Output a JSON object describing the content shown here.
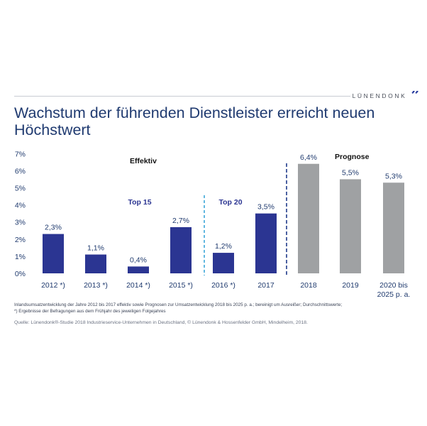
{
  "header": {
    "brand": "LÜNENDONK",
    "title_line1": "Wachstum der führenden Dienstleister erreicht neuen",
    "title_line2": "Höchstwert"
  },
  "chart_data": {
    "type": "bar",
    "categories": [
      "2012 *)",
      "2013 *)",
      "2014 *)",
      "2015 *)",
      "2016 *)",
      "2017",
      "2018",
      "2019",
      "2020 bis 2025 p. a."
    ],
    "values": [
      2.3,
      1.1,
      0.4,
      2.7,
      1.2,
      3.5,
      6.4,
      5.5,
      5.3
    ],
    "value_labels": [
      "2,3%",
      "1,1%",
      "0,4%",
      "2,7%",
      "1,2%",
      "3,5%",
      "6,4%",
      "5,5%",
      "5,3%"
    ],
    "bar_groups": [
      "effektiv",
      "effektiv",
      "effektiv",
      "effektiv",
      "effektiv",
      "effektiv",
      "prognose",
      "prognose",
      "prognose"
    ],
    "ylim": [
      0,
      7
    ],
    "yticks": [
      "0%",
      "1%",
      "2%",
      "3%",
      "4%",
      "5%",
      "6%",
      "7%"
    ],
    "annotations": {
      "effektiv": "Effektiv",
      "prognose": "Prognose",
      "top15": "Top 15",
      "top20": "Top 20"
    },
    "colors": {
      "effektiv": "#2b3592",
      "prognose": "#9fa1a3",
      "divider_top": "#3ba7d9",
      "divider_forecast": "#1f3a8a",
      "axis_text": "#1f3a6e"
    }
  },
  "footnotes": {
    "line1": "Inlandsumsatzentwicklung der Jahre 2012 bis 2017 effektiv sowie Prognosen zur Umsatzentwicklung 2018 bis 2025 p. a.; bereinigt um Ausreißer; Durchschnittswerte;",
    "line2": "*) Ergebnisse der Befragungen aus dem Frühjahr des jeweiligen Folgejahres"
  },
  "source": "Quelle: Lünendonk®-Studie 2018 Industrieservice-Unternehmen in Deutschland, © Lünendonk & Hossenfelder GmbH, Mindelheim, 2018."
}
